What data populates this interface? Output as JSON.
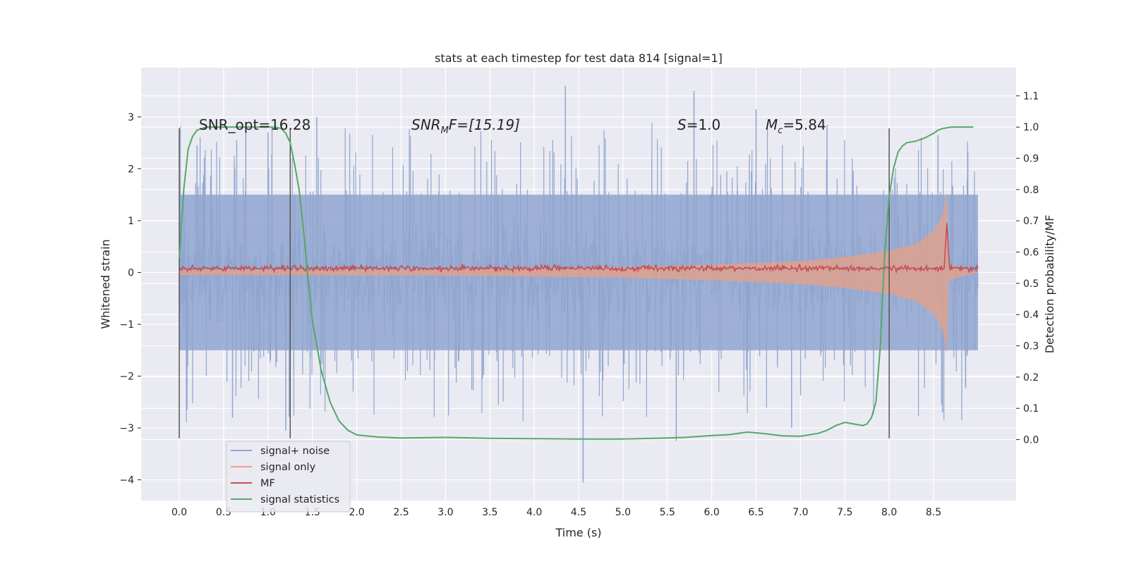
{
  "chart_data": {
    "type": "line",
    "title": "stats at each timestep for test data 814 [signal=1]",
    "xlabel": "Time (s)",
    "ylabel": "Whitened strain",
    "y2label": "Detection probability/MF",
    "xlim": [
      -0.43,
      9.43
    ],
    "ylim": [
      -4.4,
      3.95
    ],
    "y2lim": [
      -0.195,
      1.19
    ],
    "x_ticks": [
      0.0,
      0.5,
      1.0,
      1.5,
      2.0,
      2.5,
      3.0,
      3.5,
      4.0,
      4.5,
      5.0,
      5.5,
      6.0,
      6.5,
      7.0,
      7.5,
      8.0,
      8.5
    ],
    "x_tick_labels": [
      "0.0",
      "0.5",
      "1.0",
      "1.5",
      "2.0",
      "2.5",
      "3.0",
      "3.5",
      "4.0",
      "4.5",
      "5.0",
      "5.5",
      "6.0",
      "6.5",
      "7.0",
      "7.5",
      "8.0",
      "8.5"
    ],
    "y_ticks": [
      3,
      2,
      1,
      0,
      -1,
      -2,
      -3,
      -4
    ],
    "y_tick_labels": [
      "3",
      "2",
      "1",
      "0",
      "−1",
      "−2",
      "−3",
      "−4"
    ],
    "y2_ticks": [
      1.1,
      1.0,
      0.9,
      0.8,
      0.7,
      0.6,
      0.5,
      0.4,
      0.3,
      0.2,
      0.1,
      0.0
    ],
    "y2_tick_labels": [
      "1.1",
      "1.0",
      "0.9",
      "0.8",
      "0.7",
      "0.6",
      "0.5",
      "0.4",
      "0.3",
      "0.2",
      "0.1",
      "0.0"
    ],
    "grid": true,
    "legend_position": "lower-left",
    "vertical_markers": [
      {
        "x": 0.0,
        "y_range": [
          -3.2,
          2.78
        ]
      },
      {
        "x": 1.25,
        "y_range": [
          -3.2,
          2.78
        ]
      },
      {
        "x": 8.0,
        "y_range": [
          -3.2,
          2.78
        ]
      }
    ],
    "annotations": [
      {
        "x": 0.2,
        "y": 2.8,
        "text": "SNR_opt=16.28",
        "math": false
      },
      {
        "x": 2.6,
        "y": 2.8,
        "text": "",
        "math": "snr"
      },
      {
        "x": 5.6,
        "y": 2.8,
        "text": "",
        "math": "s"
      },
      {
        "x": 6.6,
        "y": 2.8,
        "text": "",
        "math": "mc"
      }
    ],
    "annotation_parts": {
      "snr_main": "SNR",
      "snr_sub": "M",
      "snr_rest": "F=[15.19]",
      "s_main": "S",
      "s_rest": "=1.0",
      "mc_main": "M",
      "mc_sub": "c",
      "mc_rest": "=5.84"
    },
    "series": [
      {
        "name": "signal+ noise",
        "color": "#8fa5cf",
        "axis": "left",
        "kind": "noise-band",
        "x_range": [
          0.0,
          9.0
        ],
        "core_amplitude": 1.5,
        "peaks": [
          {
            "x": 0.2,
            "y": 2.45
          },
          {
            "x": 0.75,
            "y": 2.85
          },
          {
            "x": 1.0,
            "y": 2.7
          },
          {
            "x": 1.55,
            "y": 3.0
          },
          {
            "x": 4.35,
            "y": 3.6
          },
          {
            "x": 5.8,
            "y": 3.5
          },
          {
            "x": 6.5,
            "y": 3.15
          },
          {
            "x": 7.3,
            "y": 2.85
          },
          {
            "x": 8.55,
            "y": 2.65
          },
          {
            "x": 4.55,
            "y": -4.05
          },
          {
            "x": 5.6,
            "y": -3.25
          },
          {
            "x": 6.9,
            "y": -3.0
          },
          {
            "x": 1.2,
            "y": -3.05
          },
          {
            "x": 0.6,
            "y": -2.8
          },
          {
            "x": 8.6,
            "y": -2.7
          }
        ]
      },
      {
        "name": "signal only",
        "color": "#e8a085",
        "axis": "left",
        "kind": "chirp-envelope",
        "envelope": [
          {
            "x": 0.0,
            "y": 0.05
          },
          {
            "x": 3.0,
            "y": 0.06
          },
          {
            "x": 5.0,
            "y": 0.1
          },
          {
            "x": 6.0,
            "y": 0.15
          },
          {
            "x": 7.0,
            "y": 0.22
          },
          {
            "x": 7.5,
            "y": 0.3
          },
          {
            "x": 8.0,
            "y": 0.42
          },
          {
            "x": 8.3,
            "y": 0.55
          },
          {
            "x": 8.5,
            "y": 0.8
          },
          {
            "x": 8.6,
            "y": 1.1
          },
          {
            "x": 8.65,
            "y": 1.55
          },
          {
            "x": 8.67,
            "y": 0.15
          },
          {
            "x": 9.0,
            "y": 0.0
          }
        ]
      },
      {
        "name": "MF",
        "color": "#c44e52",
        "axis": "left",
        "kind": "jitter-line",
        "base": 0.08,
        "jitter": 0.09,
        "x_range": [
          0.0,
          9.0
        ],
        "spike": {
          "x": 8.65,
          "y": 0.95
        }
      },
      {
        "name": "signal statistics",
        "color": "#55a868",
        "axis": "right",
        "x": [
          0.0,
          0.05,
          0.1,
          0.15,
          0.2,
          0.3,
          0.5,
          0.8,
          1.0,
          1.1,
          1.15,
          1.2,
          1.25,
          1.3,
          1.35,
          1.4,
          1.45,
          1.5,
          1.6,
          1.7,
          1.8,
          1.9,
          2.0,
          2.25,
          2.5,
          2.75,
          3.0,
          3.5,
          4.0,
          4.5,
          5.0,
          5.5,
          5.7,
          6.0,
          6.2,
          6.4,
          6.6,
          6.8,
          7.0,
          7.2,
          7.3,
          7.4,
          7.5,
          7.6,
          7.7,
          7.75,
          7.8,
          7.85,
          7.9,
          7.95,
          8.0,
          8.05,
          8.1,
          8.15,
          8.2,
          8.3,
          8.4,
          8.5,
          8.55,
          8.6,
          8.7,
          8.8,
          8.9,
          8.95
        ],
        "values": [
          0.58,
          0.8,
          0.93,
          0.97,
          0.99,
          1.0,
          1.0,
          1.0,
          1.0,
          0.999,
          0.995,
          0.98,
          0.95,
          0.88,
          0.8,
          0.67,
          0.52,
          0.38,
          0.22,
          0.12,
          0.06,
          0.03,
          0.015,
          0.008,
          0.005,
          0.006,
          0.007,
          0.004,
          0.003,
          0.002,
          0.002,
          0.005,
          0.007,
          0.013,
          0.016,
          0.024,
          0.019,
          0.012,
          0.011,
          0.02,
          0.03,
          0.045,
          0.055,
          0.05,
          0.045,
          0.05,
          0.07,
          0.12,
          0.3,
          0.6,
          0.78,
          0.87,
          0.92,
          0.94,
          0.95,
          0.955,
          0.965,
          0.98,
          0.99,
          0.995,
          1.0,
          1.0,
          1.0,
          1.0
        ]
      }
    ]
  }
}
